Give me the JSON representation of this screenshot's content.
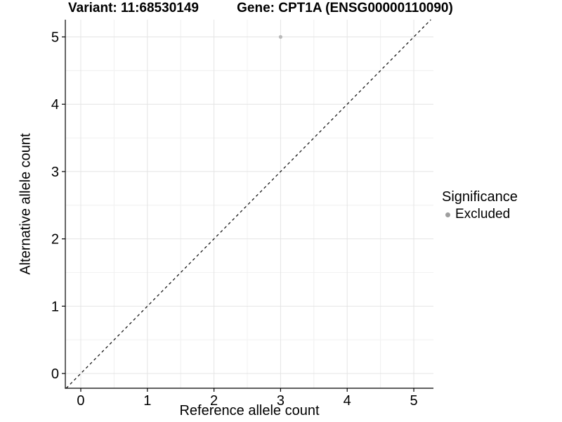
{
  "chart_data": {
    "type": "scatter",
    "titles": {
      "left": "Variant: 11:68530149",
      "right": "Gene: CPT1A (ENSG00000110090)"
    },
    "xlabel": "Reference allele count",
    "ylabel": "Alternative allele count",
    "x_ticks": [
      0,
      1,
      2,
      3,
      4,
      5
    ],
    "y_ticks": [
      0,
      1,
      2,
      3,
      4,
      5
    ],
    "xlim": [
      -0.232,
      5.295
    ],
    "ylim": [
      -0.219,
      5.256
    ],
    "grid": {
      "major": true,
      "minor": true
    },
    "points": [
      {
        "x": 3,
        "y": 5,
        "significance": "Excluded"
      }
    ],
    "identity_line": {
      "style": "dashed",
      "equation": "y = x"
    },
    "legend": {
      "title": "Significance",
      "position": "right",
      "items": [
        {
          "label": "Excluded",
          "color": "#9e9e9e",
          "marker": "circle"
        }
      ]
    },
    "colors": {
      "point": "#b9b9b9",
      "grid_major": "#e4e4e4",
      "grid_minor": "#f2f2f2",
      "axis_line": "#000000",
      "identity_line": "#1a1a1a",
      "background": "#ffffff",
      "text": "#000000"
    }
  }
}
